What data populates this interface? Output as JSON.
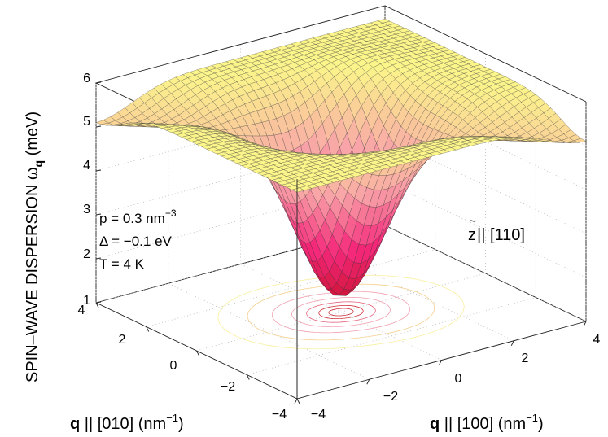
{
  "chart_data": {
    "type": "surface",
    "zlabel": "SPIN–WAVE DISPERSION ω",
    "zlabel_sub": "q",
    "zlabel_unit": "(meV)",
    "xlabel_bold": "q",
    "xlabel": " || [100] (nm",
    "ylabel_bold": "q",
    "ylabel": " || [010] (nm",
    "unit_exp": "−1",
    "unit_close": ")",
    "xlim": [
      -4,
      4
    ],
    "ylim": [
      -4,
      4
    ],
    "zlim": [
      1,
      6
    ],
    "x_ticks": [
      "−4",
      "−2",
      "0",
      "2",
      "4"
    ],
    "y_ticks": [
      "−4",
      "−2",
      "0",
      "2",
      "4"
    ],
    "z_ticks": [
      "1",
      "2",
      "3",
      "4",
      "5",
      "6"
    ],
    "annotations": {
      "p_prefix": "p = 0.3 nm",
      "p_exp": "−3",
      "delta": "Δ = −0.1 eV",
      "temp": "T = 4 K",
      "axis_z": "z",
      "axis_tilde": "~",
      "axis_dir": " || [110]"
    },
    "surface": {
      "min_energy": 1.2,
      "plateau_energy": 5.7,
      "minimum_at": [
        0,
        0
      ],
      "colormap": [
        "#c8102e",
        "#f4287a",
        "#f8a4a8",
        "#fbf58a"
      ]
    },
    "contour_colors": [
      "#d0303a",
      "#e4607a",
      "#f0a0b0",
      "#f5d090",
      "#f8f0a0"
    ]
  }
}
